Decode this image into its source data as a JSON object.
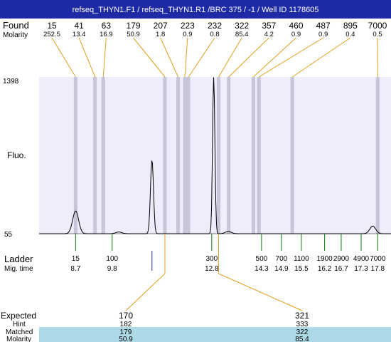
{
  "title": "refseq_THYN1.F1 / refseq_THYN1.R1 /BRC 375 / -1 / Well ID 1178605",
  "labels": {
    "found": "Found",
    "molarity": "Molarity",
    "fluo": "Fluo.",
    "ladder": "Ladder",
    "mig_time": "Mig. time",
    "expected": "Expected",
    "hint": "Hint",
    "matched": "Matched",
    "molarity_bottom": "Molarity"
  },
  "colors": {
    "title_bg": "#1f2aa6",
    "plot_bg": "#ededfb",
    "band": "#c6c6d8",
    "trace": "#000000",
    "ladder_tick": "#0a7a0a",
    "connector": "#e0a020",
    "table_highlight": "#add8e6"
  },
  "chart_data": {
    "type": "line",
    "ylim": [
      55,
      1398
    ],
    "y_ticks": [
      "1398",
      "55"
    ],
    "found_peaks": [
      {
        "size": "15",
        "molarity": "252.5"
      },
      {
        "size": "41",
        "molarity": "13.4"
      },
      {
        "size": "63",
        "molarity": "16.9"
      },
      {
        "size": "179",
        "molarity": "50.9"
      },
      {
        "size": "207",
        "molarity": "1.8"
      },
      {
        "size": "223",
        "molarity": "0.9"
      },
      {
        "size": "232",
        "molarity": "0.8"
      },
      {
        "size": "322",
        "molarity": "85.4"
      },
      {
        "size": "357",
        "molarity": "4.2"
      },
      {
        "size": "460",
        "molarity": "0.9"
      },
      {
        "size": "487",
        "molarity": "0.9"
      },
      {
        "size": "895",
        "molarity": "0.4"
      },
      {
        "size": "7000",
        "molarity": "0.5"
      }
    ],
    "ladder": [
      {
        "size": "15",
        "mig_time": "8.7"
      },
      {
        "size": "100",
        "mig_time": "9.8"
      },
      {
        "size": "300",
        "mig_time": "12.8"
      },
      {
        "size": "500",
        "mig_time": "14.3"
      },
      {
        "size": "700",
        "mig_time": "14.9"
      },
      {
        "size": "1100",
        "mig_time": "15.5"
      },
      {
        "size": "1900",
        "mig_time": "16.2"
      },
      {
        "size": "2900",
        "mig_time": "16.7"
      },
      {
        "size": "4900",
        "mig_time": "17.3"
      },
      {
        "size": "7000",
        "mig_time": "17.8"
      }
    ],
    "expected": [
      {
        "expected": "170",
        "hint": "182",
        "matched": "179",
        "molarity": "50.9"
      },
      {
        "expected": "321",
        "hint": "333",
        "matched": "322",
        "molarity": "85.4"
      }
    ],
    "trace_peaks": [
      {
        "mig_time": 8.7,
        "height": 250
      },
      {
        "mig_time": 10.0,
        "height": 70
      },
      {
        "mig_time": 11.0,
        "height": 690
      },
      {
        "mig_time": 12.86,
        "height": 1398
      },
      {
        "mig_time": 13.3,
        "height": 75
      },
      {
        "mig_time": 17.65,
        "height": 120
      }
    ]
  }
}
